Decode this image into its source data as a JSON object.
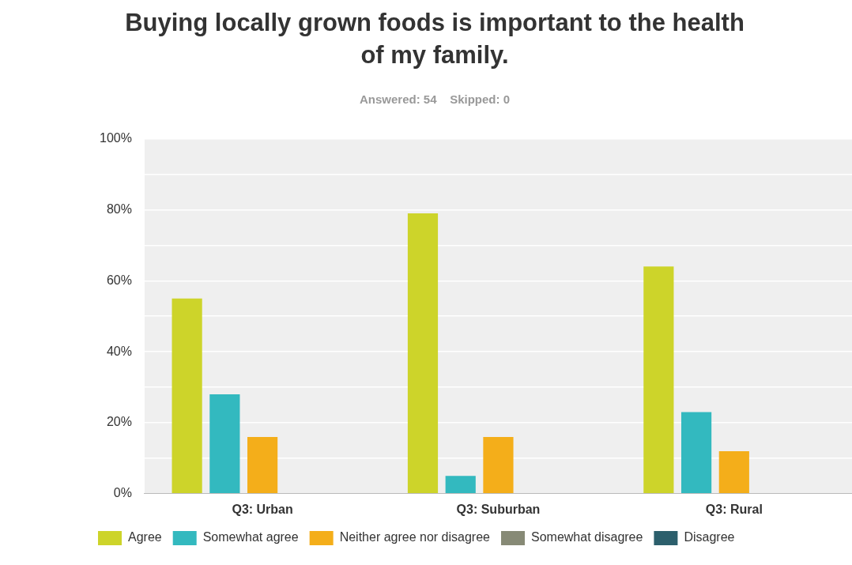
{
  "chart_data": {
    "type": "bar",
    "title": "Buying locally grown foods is important to the health of my family.",
    "subtitle": "Answered: 54    Skipped: 0",
    "categories": [
      "Q3: Urban",
      "Q3: Suburban",
      "Q3: Rural"
    ],
    "series": [
      {
        "name": "Agree",
        "color": "#cdd42a",
        "values": [
          55,
          79,
          64
        ]
      },
      {
        "name": "Somewhat agree",
        "color": "#33b9bf",
        "values": [
          28,
          5,
          23
        ]
      },
      {
        "name": "Neither agree nor disagree",
        "color": "#f4ae1a",
        "values": [
          16,
          16,
          12
        ]
      },
      {
        "name": "Somewhat disagree",
        "color": "#878a76",
        "values": [
          0,
          0,
          0
        ]
      },
      {
        "name": "Disagree",
        "color": "#2c5f6c",
        "values": [
          0,
          0,
          0
        ]
      }
    ],
    "ylim": [
      0,
      100
    ],
    "yticks": [
      {
        "value": 0,
        "label": "0%"
      },
      {
        "value": 10,
        "label": null
      },
      {
        "value": 20,
        "label": "20%"
      },
      {
        "value": 30,
        "label": null
      },
      {
        "value": 40,
        "label": "40%"
      },
      {
        "value": 50,
        "label": null
      },
      {
        "value": 60,
        "label": "60%"
      },
      {
        "value": 70,
        "label": null
      },
      {
        "value": 80,
        "label": "80%"
      },
      {
        "value": 90,
        "label": null
      },
      {
        "value": 100,
        "label": "100%"
      }
    ],
    "grid": "y",
    "legend": "bottom left"
  }
}
